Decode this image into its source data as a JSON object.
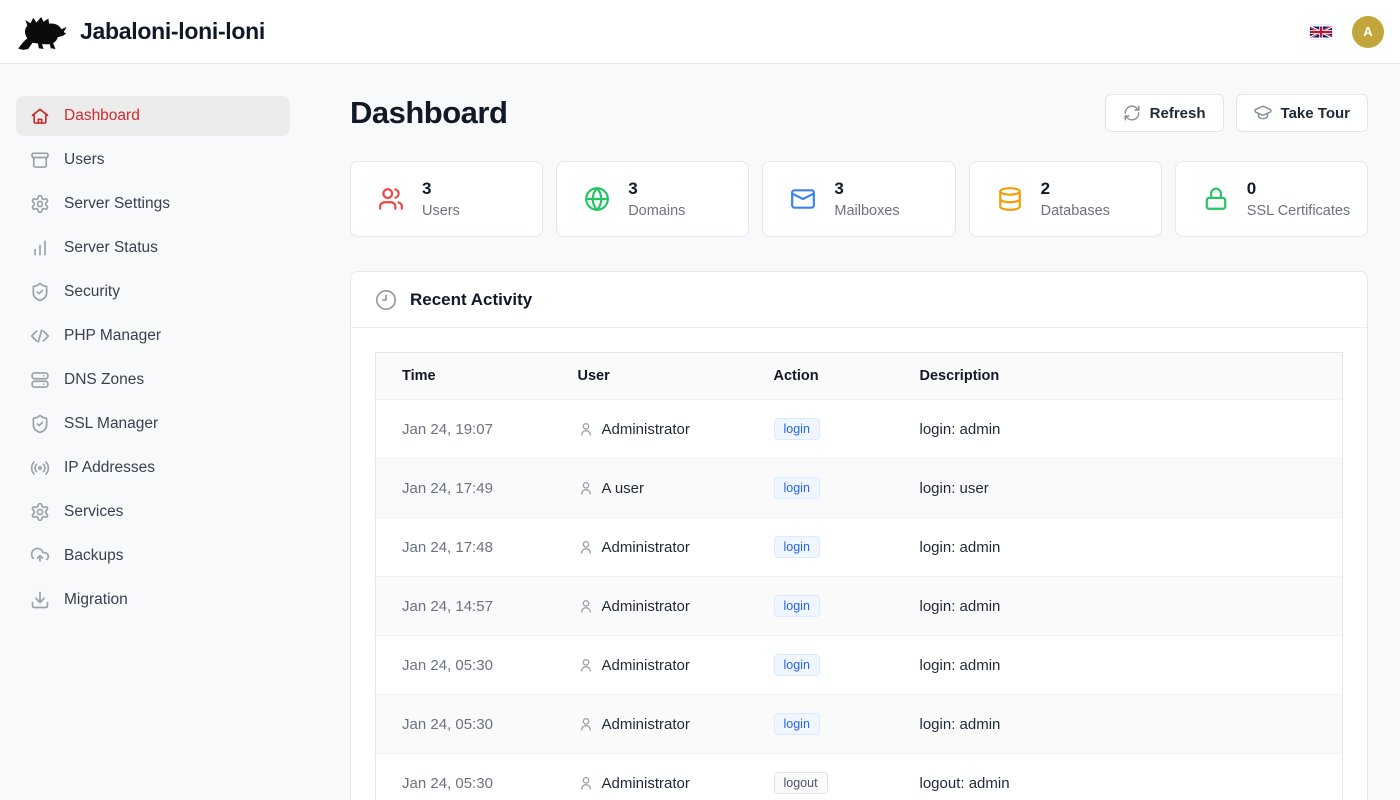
{
  "header": {
    "brand": "Jabaloni-loni-loni",
    "logo_icon": "boar",
    "language_flag_icon": "uk-flag",
    "avatar_letter": "A"
  },
  "sidebar": {
    "items": [
      {
        "label": "Dashboard",
        "icon": "home",
        "active": true
      },
      {
        "label": "Users",
        "icon": "archive",
        "active": false
      },
      {
        "label": "Server Settings",
        "icon": "gear",
        "active": false
      },
      {
        "label": "Server Status",
        "icon": "bar-chart",
        "active": false
      },
      {
        "label": "Security",
        "icon": "shield-check",
        "active": false
      },
      {
        "label": "PHP Manager",
        "icon": "code",
        "active": false
      },
      {
        "label": "DNS Zones",
        "icon": "server-stack",
        "active": false
      },
      {
        "label": "SSL Manager",
        "icon": "shield-check",
        "active": false
      },
      {
        "label": "IP Addresses",
        "icon": "radio-waves",
        "active": false
      },
      {
        "label": "Services",
        "icon": "gear",
        "active": false
      },
      {
        "label": "Backups",
        "icon": "cloud-upload",
        "active": false
      },
      {
        "label": "Migration",
        "icon": "download",
        "active": false
      }
    ]
  },
  "main": {
    "title": "Dashboard",
    "actions": [
      {
        "label": "Refresh",
        "icon": "refresh"
      },
      {
        "label": "Take Tour",
        "icon": "graduation-cap"
      }
    ],
    "stats": [
      {
        "value": "3",
        "label": "Users",
        "icon": "users-group",
        "color": "#ef4444"
      },
      {
        "value": "3",
        "label": "Domains",
        "icon": "globe",
        "color": "#22c55e"
      },
      {
        "value": "3",
        "label": "Mailboxes",
        "icon": "mail",
        "color": "#3b82f6"
      },
      {
        "value": "2",
        "label": "Databases",
        "icon": "database",
        "color": "#f59e0b"
      },
      {
        "value": "0",
        "label": "SSL Certificates",
        "icon": "lock",
        "color": "#22c55e"
      }
    ],
    "activity": {
      "title": "Recent Activity",
      "title_icon": "clock",
      "columns": [
        "Time",
        "User",
        "Action",
        "Description"
      ],
      "rows": [
        {
          "time": "Jan 24, 19:07",
          "user": "Administrator",
          "action": "login",
          "description": "login: admin"
        },
        {
          "time": "Jan 24, 17:49",
          "user": "A user",
          "action": "login",
          "description": "login: user"
        },
        {
          "time": "Jan 24, 17:48",
          "user": "Administrator",
          "action": "login",
          "description": "login: admin"
        },
        {
          "time": "Jan 24, 14:57",
          "user": "Administrator",
          "action": "login",
          "description": "login: admin"
        },
        {
          "time": "Jan 24, 05:30",
          "user": "Administrator",
          "action": "login",
          "description": "login: admin"
        },
        {
          "time": "Jan 24, 05:30",
          "user": "Administrator",
          "action": "login",
          "description": "login: admin"
        },
        {
          "time": "Jan 24, 05:30",
          "user": "Administrator",
          "action": "logout",
          "description": "logout: admin"
        }
      ]
    }
  }
}
